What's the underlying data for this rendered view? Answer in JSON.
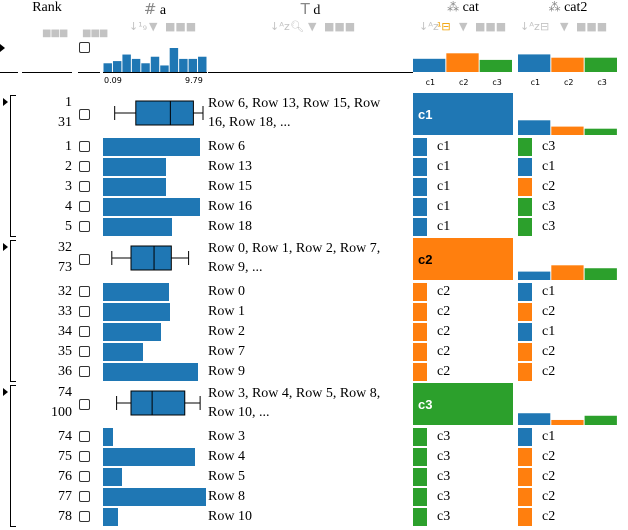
{
  "headers": {
    "rank": "Rank",
    "a": "a",
    "d": "d",
    "cat": "cat",
    "cat2": "cat2"
  },
  "hist_ticks": {
    "min": "0.09",
    "max": "9.79"
  },
  "histogram_a": [
    4,
    5,
    8,
    6,
    4,
    7,
    3,
    11,
    6,
    6,
    7
  ],
  "cat_categories": [
    "c1",
    "c2",
    "c3"
  ],
  "colors": {
    "c1": "#1f77b4",
    "c2": "#ff7f0e",
    "c3": "#2ca02c"
  },
  "groups": [
    {
      "range_start": "1",
      "range_end": "31",
      "summary": "Row 6, Row 13, Row 15, Row 16, Row 18, ...",
      "summary_line1": "Row 6, Row 13, Row 15, Row",
      "summary_line2": "16, Row 18, ...",
      "cat_label": "c1",
      "box": {
        "min": 0.08,
        "q1": 0.3,
        "median": 0.66,
        "q3": 0.9,
        "max": 1.0
      },
      "cat2_hist": [
        0.35,
        0.2,
        0.15
      ],
      "rows": [
        {
          "rank": "1",
          "label": "Row 6",
          "a": 0.93,
          "cat": "c1",
          "cat2": "c3"
        },
        {
          "rank": "2",
          "label": "Row 13",
          "a": 0.61,
          "cat": "c1",
          "cat2": "c1"
        },
        {
          "rank": "3",
          "label": "Row 15",
          "a": 0.61,
          "cat": "c1",
          "cat2": "c2"
        },
        {
          "rank": "4",
          "label": "Row 16",
          "a": 0.93,
          "cat": "c1",
          "cat2": "c3"
        },
        {
          "rank": "5",
          "label": "Row 18",
          "a": 0.66,
          "cat": "c1",
          "cat2": "c3"
        }
      ]
    },
    {
      "range_start": "32",
      "range_end": "73",
      "summary": "Row 0, Row 1, Row 2, Row 7, Row 9, ...",
      "summary_line1": "Row 0, Row 1, Row 2, Row 7,",
      "summary_line2": "Row 9, ...",
      "cat_label": "c2",
      "box": {
        "min": 0.05,
        "q1": 0.25,
        "median": 0.49,
        "q3": 0.67,
        "max": 0.85
      },
      "cat2_hist": [
        0.2,
        0.35,
        0.28
      ],
      "rows": [
        {
          "rank": "32",
          "label": "Row 0",
          "a": 0.63,
          "cat": "c2",
          "cat2": "c1"
        },
        {
          "rank": "33",
          "label": "Row 1",
          "a": 0.64,
          "cat": "c2",
          "cat2": "c2"
        },
        {
          "rank": "34",
          "label": "Row 2",
          "a": 0.56,
          "cat": "c2",
          "cat2": "c1"
        },
        {
          "rank": "35",
          "label": "Row 7",
          "a": 0.38,
          "cat": "c2",
          "cat2": "c2"
        },
        {
          "rank": "36",
          "label": "Row 9",
          "a": 0.91,
          "cat": "c2",
          "cat2": "c2"
        }
      ]
    },
    {
      "range_start": "74",
      "range_end": "100",
      "summary": "Row 3, Row 4, Row 5, Row 8, Row 10, ...",
      "summary_line1": "Row 3, Row 4, Row 5, Row 8,",
      "summary_line2": "Row 10, ...",
      "cat_label": "c3",
      "box": {
        "min": 0.1,
        "q1": 0.25,
        "median": 0.47,
        "q3": 0.81,
        "max": 0.97
      },
      "cat2_hist": [
        0.28,
        0.12,
        0.22
      ],
      "rows": [
        {
          "rank": "74",
          "label": "Row 3",
          "a": 0.1,
          "cat": "c3",
          "cat2": "c1"
        },
        {
          "rank": "75",
          "label": "Row 4",
          "a": 0.88,
          "cat": "c3",
          "cat2": "c2"
        },
        {
          "rank": "76",
          "label": "Row 5",
          "a": 0.18,
          "cat": "c3",
          "cat2": "c2"
        },
        {
          "rank": "77",
          "label": "Row 8",
          "a": 0.99,
          "cat": "c3",
          "cat2": "c2"
        },
        {
          "rank": "78",
          "label": "Row 10",
          "a": 0.14,
          "cat": "c3",
          "cat2": "c2"
        }
      ]
    }
  ]
}
